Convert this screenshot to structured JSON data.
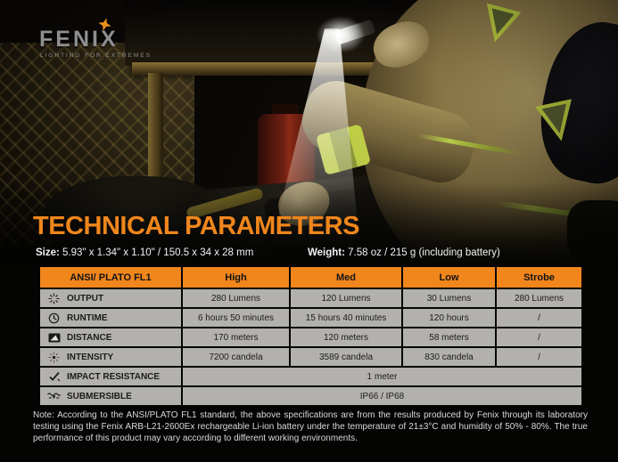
{
  "brand": {
    "logo_text": "FENIX",
    "tagline": "LIGHTING FOR EXTREMES"
  },
  "colors": {
    "accent_orange": "#F1861D",
    "table_row_gray": "#B3B1AE",
    "background": "#000000",
    "note_text": "#D9D9D9",
    "reflective_lime": "#B9C93E"
  },
  "section": {
    "title": "TECHNICAL PARAMETERS",
    "size_label": "Size:",
    "size_value": "5.93\" x 1.34\" x 1.10\" / 150.5 x 34 x 28 mm",
    "weight_label": "Weight:",
    "weight_value": "7.58 oz / 215 g (including battery)"
  },
  "table": {
    "headers": [
      "ANSI/ PLATO FL1",
      "High",
      "Med",
      "Low",
      "Strobe"
    ],
    "rows": [
      {
        "icon": "output-icon",
        "label": "OUTPUT",
        "values": [
          "280 Lumens",
          "120 Lumens",
          "30 Lumens",
          "280 Lumens"
        ],
        "span": false
      },
      {
        "icon": "runtime-icon",
        "label": "RUNTIME",
        "values": [
          "6 hours 50 minutes",
          "15 hours 40 minutes",
          "120 hours",
          "/"
        ],
        "span": false
      },
      {
        "icon": "distance-icon",
        "label": "DISTANCE",
        "values": [
          "170 meters",
          "120 meters",
          "58 meters",
          "/"
        ],
        "span": false
      },
      {
        "icon": "intensity-icon",
        "label": "INTENSITY",
        "values": [
          "7200 candela",
          "3589 candela",
          "830 candela",
          "/"
        ],
        "span": false
      },
      {
        "icon": "impact-icon",
        "label": "IMPACT RESISTANCE",
        "values": [
          "1 meter"
        ],
        "span": true
      },
      {
        "icon": "submersible-icon",
        "label": "SUBMERSIBLE",
        "values": [
          "IP66 / IP68"
        ],
        "span": true
      }
    ]
  },
  "note": "Note: According to the ANSI/PLATO FL1 standard, the above specifications are from the results produced by Fenix through its laboratory testing using the Fenix ARB-L21-2600Ex rechargeable Li-ion battery under the temperature of 21±3°C and humidity of 50% - 80%. The true performance of this product may vary according to different working environments."
}
